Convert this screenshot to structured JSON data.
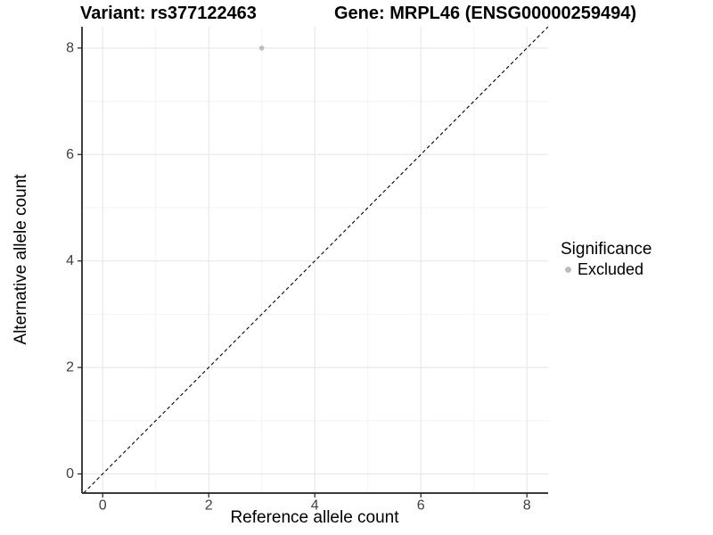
{
  "header": {
    "variant_title": "Variant: rs377122463",
    "gene_title": "Gene: MRPL46 (ENSG00000259494)"
  },
  "chart_data": {
    "type": "scatter",
    "title": "Variant: rs377122463 | Gene: MRPL46 (ENSG00000259494)",
    "xlabel": "Reference allele count",
    "ylabel": "Alternative allele count",
    "xlim": [
      -0.39,
      8.4
    ],
    "ylim": [
      -0.36,
      8.4
    ],
    "x_ticks": [
      0,
      2,
      4,
      6,
      8
    ],
    "y_ticks": [
      0,
      2,
      4,
      6,
      8
    ],
    "x_minor_ticks": [
      1,
      3,
      5,
      7
    ],
    "y_minor_ticks": [
      1,
      3,
      5,
      7
    ],
    "grid": true,
    "series": [
      {
        "name": "Excluded",
        "color": "#bdbdbd",
        "points": [
          {
            "x": 3,
            "y": 8
          }
        ]
      }
    ],
    "reference_line": {
      "type": "identity",
      "equation": "y = x",
      "style": "dashed",
      "color": "#000000"
    },
    "legend": {
      "title": "Significance",
      "position": "right",
      "entries": [
        {
          "label": "Excluded",
          "color": "#bdbdbd"
        }
      ]
    }
  },
  "colors": {
    "background": "#ffffff",
    "grid_major": "#e8e8e8",
    "grid_minor": "#f3f3f3",
    "axis_line": "#1f1f1f",
    "tick_text": "#404040",
    "title_text": "#000000",
    "dashed_line": "#000000",
    "point": "#bdbdbd"
  }
}
